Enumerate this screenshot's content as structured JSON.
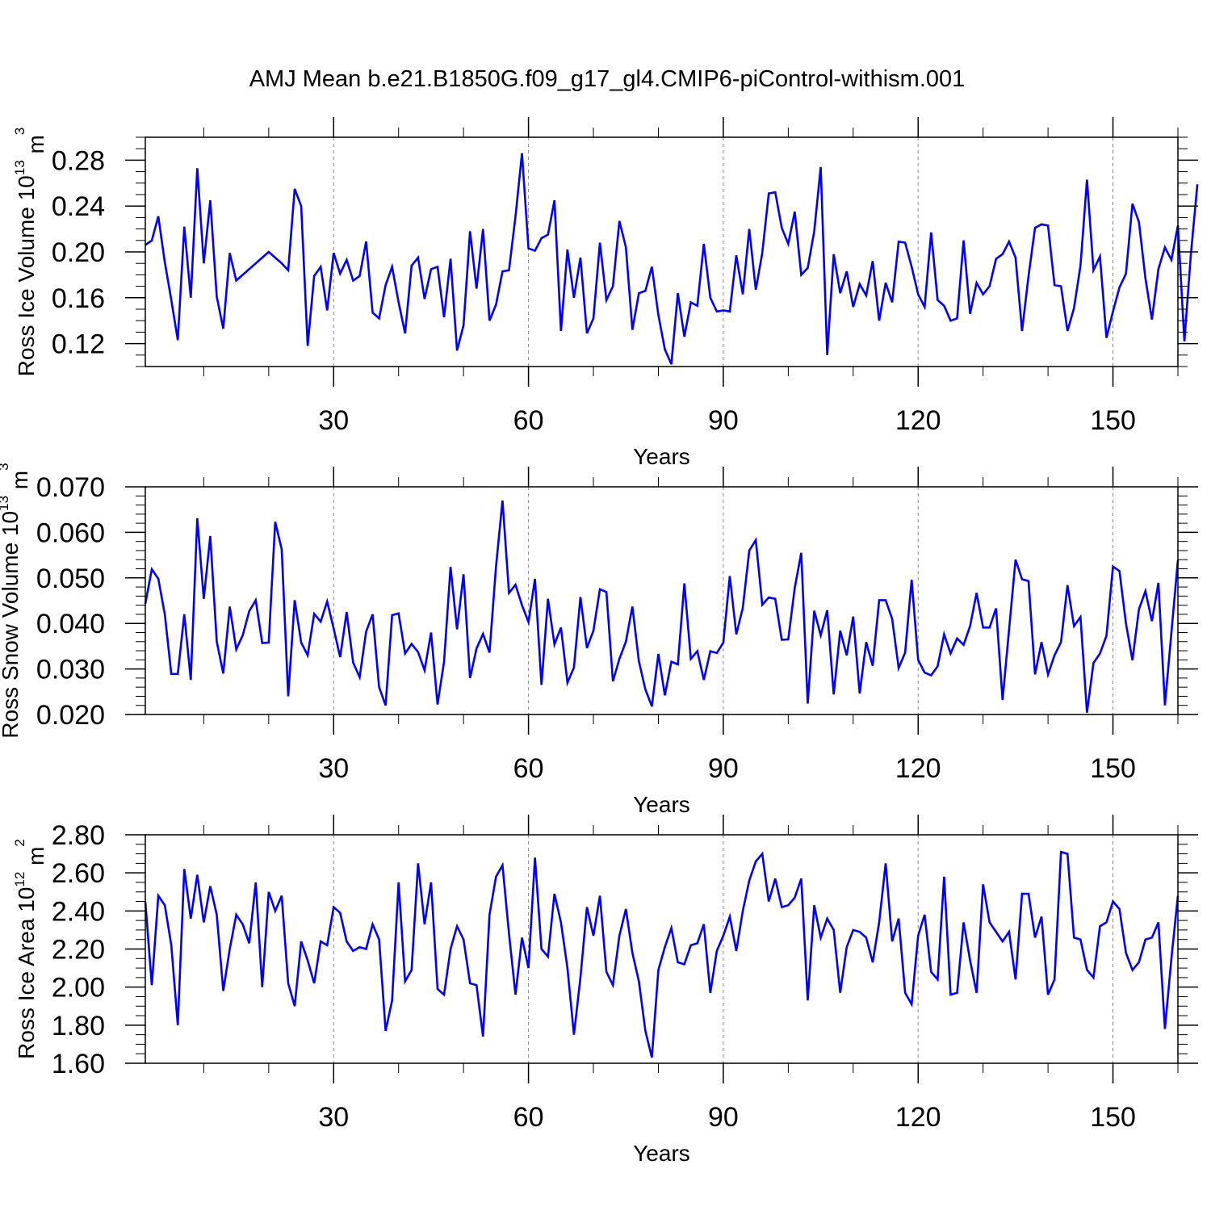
{
  "title": "AMJ Mean b.e21.B1850G.f09_g17_gl4.CMIP6-piControl-withism.001",
  "colors": {
    "line": "#0000ff",
    "axis": "#000000",
    "grid": "#888888"
  },
  "chart_data": [
    {
      "type": "line",
      "ylabel": {
        "base": "Ross Ice Volume 10",
        "exp": "13",
        "unit": " m",
        "unit_exp": "3"
      },
      "xlabel": "Years",
      "xlim": [
        1,
        160
      ],
      "xticks": [
        30,
        60,
        90,
        120,
        150
      ],
      "x_minor_step": 10,
      "ylim": [
        0.1,
        0.3
      ],
      "yticks": [
        0.12,
        0.16,
        0.2,
        0.24,
        0.28
      ],
      "ytick_labels": [
        "0.12",
        "0.16",
        "0.20",
        "0.24",
        "0.28"
      ],
      "y_minor_step": 0.01,
      "grid": "vertical dashed at major x ticks",
      "series": [
        {
          "values": [
            0.206,
            0.21,
            0.231,
            0.191,
            0.158,
            0.123,
            0.222,
            0.16,
            0.273,
            0.19,
            0.245,
            0.161,
            0.133,
            0.199,
            0.175,
            0.18,
            0.185,
            0.19,
            0.195,
            0.2,
            0.195,
            0.19,
            0.184,
            0.255,
            0.24,
            0.118,
            0.179,
            0.187,
            0.149,
            0.199,
            0.181,
            0.193,
            0.175,
            0.179,
            0.209,
            0.147,
            0.142,
            0.171,
            0.187,
            0.156,
            0.129,
            0.188,
            0.195,
            0.159,
            0.185,
            0.187,
            0.143,
            0.194,
            0.114,
            0.136,
            0.218,
            0.168,
            0.22,
            0.14,
            0.154,
            0.183,
            0.184,
            0.231,
            0.286,
            0.203,
            0.201,
            0.212,
            0.215,
            0.245,
            0.131,
            0.202,
            0.16,
            0.195,
            0.129,
            0.142,
            0.208,
            0.158,
            0.17,
            0.227,
            0.204,
            0.132,
            0.164,
            0.166,
            0.187,
            0.145,
            0.115,
            0.102,
            0.164,
            0.126,
            0.156,
            0.153,
            0.207,
            0.16,
            0.148,
            0.149,
            0.148,
            0.197,
            0.163,
            0.22,
            0.167,
            0.199,
            0.251,
            0.252,
            0.221,
            0.207,
            0.235,
            0.18,
            0.186,
            0.218,
            0.274,
            0.11,
            0.198,
            0.164,
            0.183,
            0.152,
            0.172,
            0.162,
            0.192,
            0.14,
            0.173,
            0.156,
            0.209,
            0.208,
            0.187,
            0.163,
            0.152,
            0.217,
            0.158,
            0.153,
            0.14,
            0.142,
            0.21,
            0.146,
            0.173,
            0.163,
            0.17,
            0.194,
            0.198,
            0.209,
            0.195,
            0.131,
            0.179,
            0.221,
            0.224,
            0.223,
            0.171,
            0.17,
            0.131,
            0.151,
            0.188,
            0.263,
            0.184,
            0.196,
            0.125,
            0.148,
            0.169,
            0.181,
            0.242,
            0.226,
            0.177,
            0.141,
            0.185,
            0.204,
            0.193,
            0.223,
            0.122,
            0.198,
            0.259
          ]
        }
      ]
    },
    {
      "type": "line",
      "ylabel": {
        "base": "Ross Snow Volume 10",
        "exp": "13",
        "unit": " m",
        "unit_exp": "3"
      },
      "xlabel": "Years",
      "xlim": [
        1,
        160
      ],
      "xticks": [
        30,
        60,
        90,
        120,
        150
      ],
      "x_minor_step": 10,
      "ylim": [
        0.02,
        0.07
      ],
      "yticks": [
        0.02,
        0.03,
        0.04,
        0.05,
        0.06,
        0.07
      ],
      "ytick_labels": [
        "0.020",
        "0.030",
        "0.040",
        "0.050",
        "0.060",
        "0.070"
      ],
      "y_minor_step": 0.002,
      "grid": "vertical dashed at major x ticks",
      "series": [
        {
          "values": [
            0.0443,
            0.0519,
            0.0498,
            0.042,
            0.0289,
            0.0289,
            0.042,
            0.0276,
            0.0631,
            0.0454,
            0.0592,
            0.036,
            0.029,
            0.0437,
            0.0343,
            0.0374,
            0.0427,
            0.0451,
            0.0357,
            0.0358,
            0.0623,
            0.0563,
            0.024,
            0.0451,
            0.0358,
            0.033,
            0.0421,
            0.0404,
            0.0448,
            0.0389,
            0.0326,
            0.0425,
            0.0314,
            0.0282,
            0.0382,
            0.042,
            0.026,
            0.022,
            0.0418,
            0.0422,
            0.0334,
            0.0355,
            0.0337,
            0.0297,
            0.038,
            0.0222,
            0.0316,
            0.0524,
            0.0387,
            0.0508,
            0.028,
            0.0345,
            0.0377,
            0.0336,
            0.0525,
            0.067,
            0.0467,
            0.0485,
            0.044,
            0.0403,
            0.0498,
            0.0265,
            0.0454,
            0.0354,
            0.0391,
            0.027,
            0.0303,
            0.0458,
            0.0346,
            0.0384,
            0.0475,
            0.0469,
            0.0273,
            0.0322,
            0.036,
            0.0437,
            0.0317,
            0.0255,
            0.0218,
            0.0333,
            0.0242,
            0.0316,
            0.031,
            0.0488,
            0.0322,
            0.0339,
            0.0276,
            0.0339,
            0.0335,
            0.0358,
            0.0504,
            0.0376,
            0.0434,
            0.056,
            0.0583,
            0.0441,
            0.0457,
            0.0454,
            0.0364,
            0.0365,
            0.0478,
            0.0555,
            0.0224,
            0.0428,
            0.0374,
            0.0429,
            0.0244,
            0.0384,
            0.033,
            0.0415,
            0.0246,
            0.0359,
            0.0307,
            0.0451,
            0.0451,
            0.041,
            0.0302,
            0.0336,
            0.0496,
            0.032,
            0.0292,
            0.0286,
            0.0306,
            0.0376,
            0.0334,
            0.0367,
            0.0353,
            0.0394,
            0.0467,
            0.0391,
            0.0391,
            0.0433,
            0.0232,
            0.0386,
            0.054,
            0.0497,
            0.0493,
            0.0288,
            0.0359,
            0.0288,
            0.033,
            0.0359,
            0.0484,
            0.0394,
            0.0414,
            0.0204,
            0.0313,
            0.0334,
            0.0373,
            0.0525,
            0.0515,
            0.04,
            0.0319,
            0.0431,
            0.0471,
            0.0405,
            0.0489,
            0.022,
            0.038,
            0.0539
          ]
        }
      ]
    },
    {
      "type": "line",
      "ylabel": {
        "base": "Ross Ice Area 10",
        "exp": "12",
        "unit": " m",
        "unit_exp": "2"
      },
      "xlabel": "Years",
      "xlim": [
        1,
        160
      ],
      "xticks": [
        30,
        60,
        90,
        120,
        150
      ],
      "x_minor_step": 10,
      "ylim": [
        1.6,
        2.8
      ],
      "yticks": [
        1.6,
        1.8,
        2.0,
        2.2,
        2.4,
        2.6,
        2.8
      ],
      "ytick_labels": [
        "1.60",
        "1.80",
        "2.00",
        "2.20",
        "2.40",
        "2.60",
        "2.80"
      ],
      "y_minor_step": 0.05,
      "grid": "vertical dashed at major x ticks",
      "series": [
        {
          "values": [
            2.45,
            2.01,
            2.48,
            2.43,
            2.22,
            1.8,
            2.62,
            2.36,
            2.59,
            2.34,
            2.53,
            2.38,
            1.98,
            2.2,
            2.38,
            2.33,
            2.23,
            2.55,
            2.0,
            2.5,
            2.4,
            2.48,
            2.02,
            1.9,
            2.24,
            2.14,
            2.02,
            2.24,
            2.22,
            2.42,
            2.39,
            2.24,
            2.19,
            2.21,
            2.2,
            2.33,
            2.25,
            1.77,
            1.93,
            2.55,
            2.03,
            2.09,
            2.65,
            2.33,
            2.55,
            1.99,
            1.96,
            2.2,
            2.32,
            2.25,
            2.02,
            2.01,
            1.74,
            2.38,
            2.58,
            2.64,
            2.28,
            1.96,
            2.26,
            2.1,
            2.68,
            2.2,
            2.16,
            2.49,
            2.34,
            2.1,
            1.75,
            2.05,
            2.42,
            2.27,
            2.48,
            2.08,
            2.01,
            2.27,
            2.41,
            2.18,
            2.03,
            1.77,
            1.63,
            2.09,
            2.21,
            2.31,
            2.13,
            2.12,
            2.22,
            2.23,
            2.33,
            1.97,
            2.19,
            2.27,
            2.37,
            2.19,
            2.4,
            2.56,
            2.66,
            2.7,
            2.45,
            2.57,
            2.42,
            2.43,
            2.47,
            2.57,
            1.93,
            2.43,
            2.26,
            2.36,
            2.3,
            1.97,
            2.21,
            2.3,
            2.29,
            2.26,
            2.13,
            2.34,
            2.65,
            2.24,
            2.36,
            1.97,
            1.91,
            2.27,
            2.38,
            2.08,
            2.04,
            2.58,
            1.96,
            1.97,
            2.34,
            2.14,
            1.97,
            2.54,
            2.34,
            2.29,
            2.24,
            2.29,
            2.04,
            2.49,
            2.49,
            2.26,
            2.37,
            1.96,
            2.04,
            2.71,
            2.7,
            2.26,
            2.25,
            2.09,
            2.05,
            2.32,
            2.34,
            2.45,
            2.41,
            2.18,
            2.09,
            2.13,
            2.25,
            2.26,
            2.34,
            1.78,
            2.15,
            2.48
          ]
        }
      ]
    }
  ]
}
